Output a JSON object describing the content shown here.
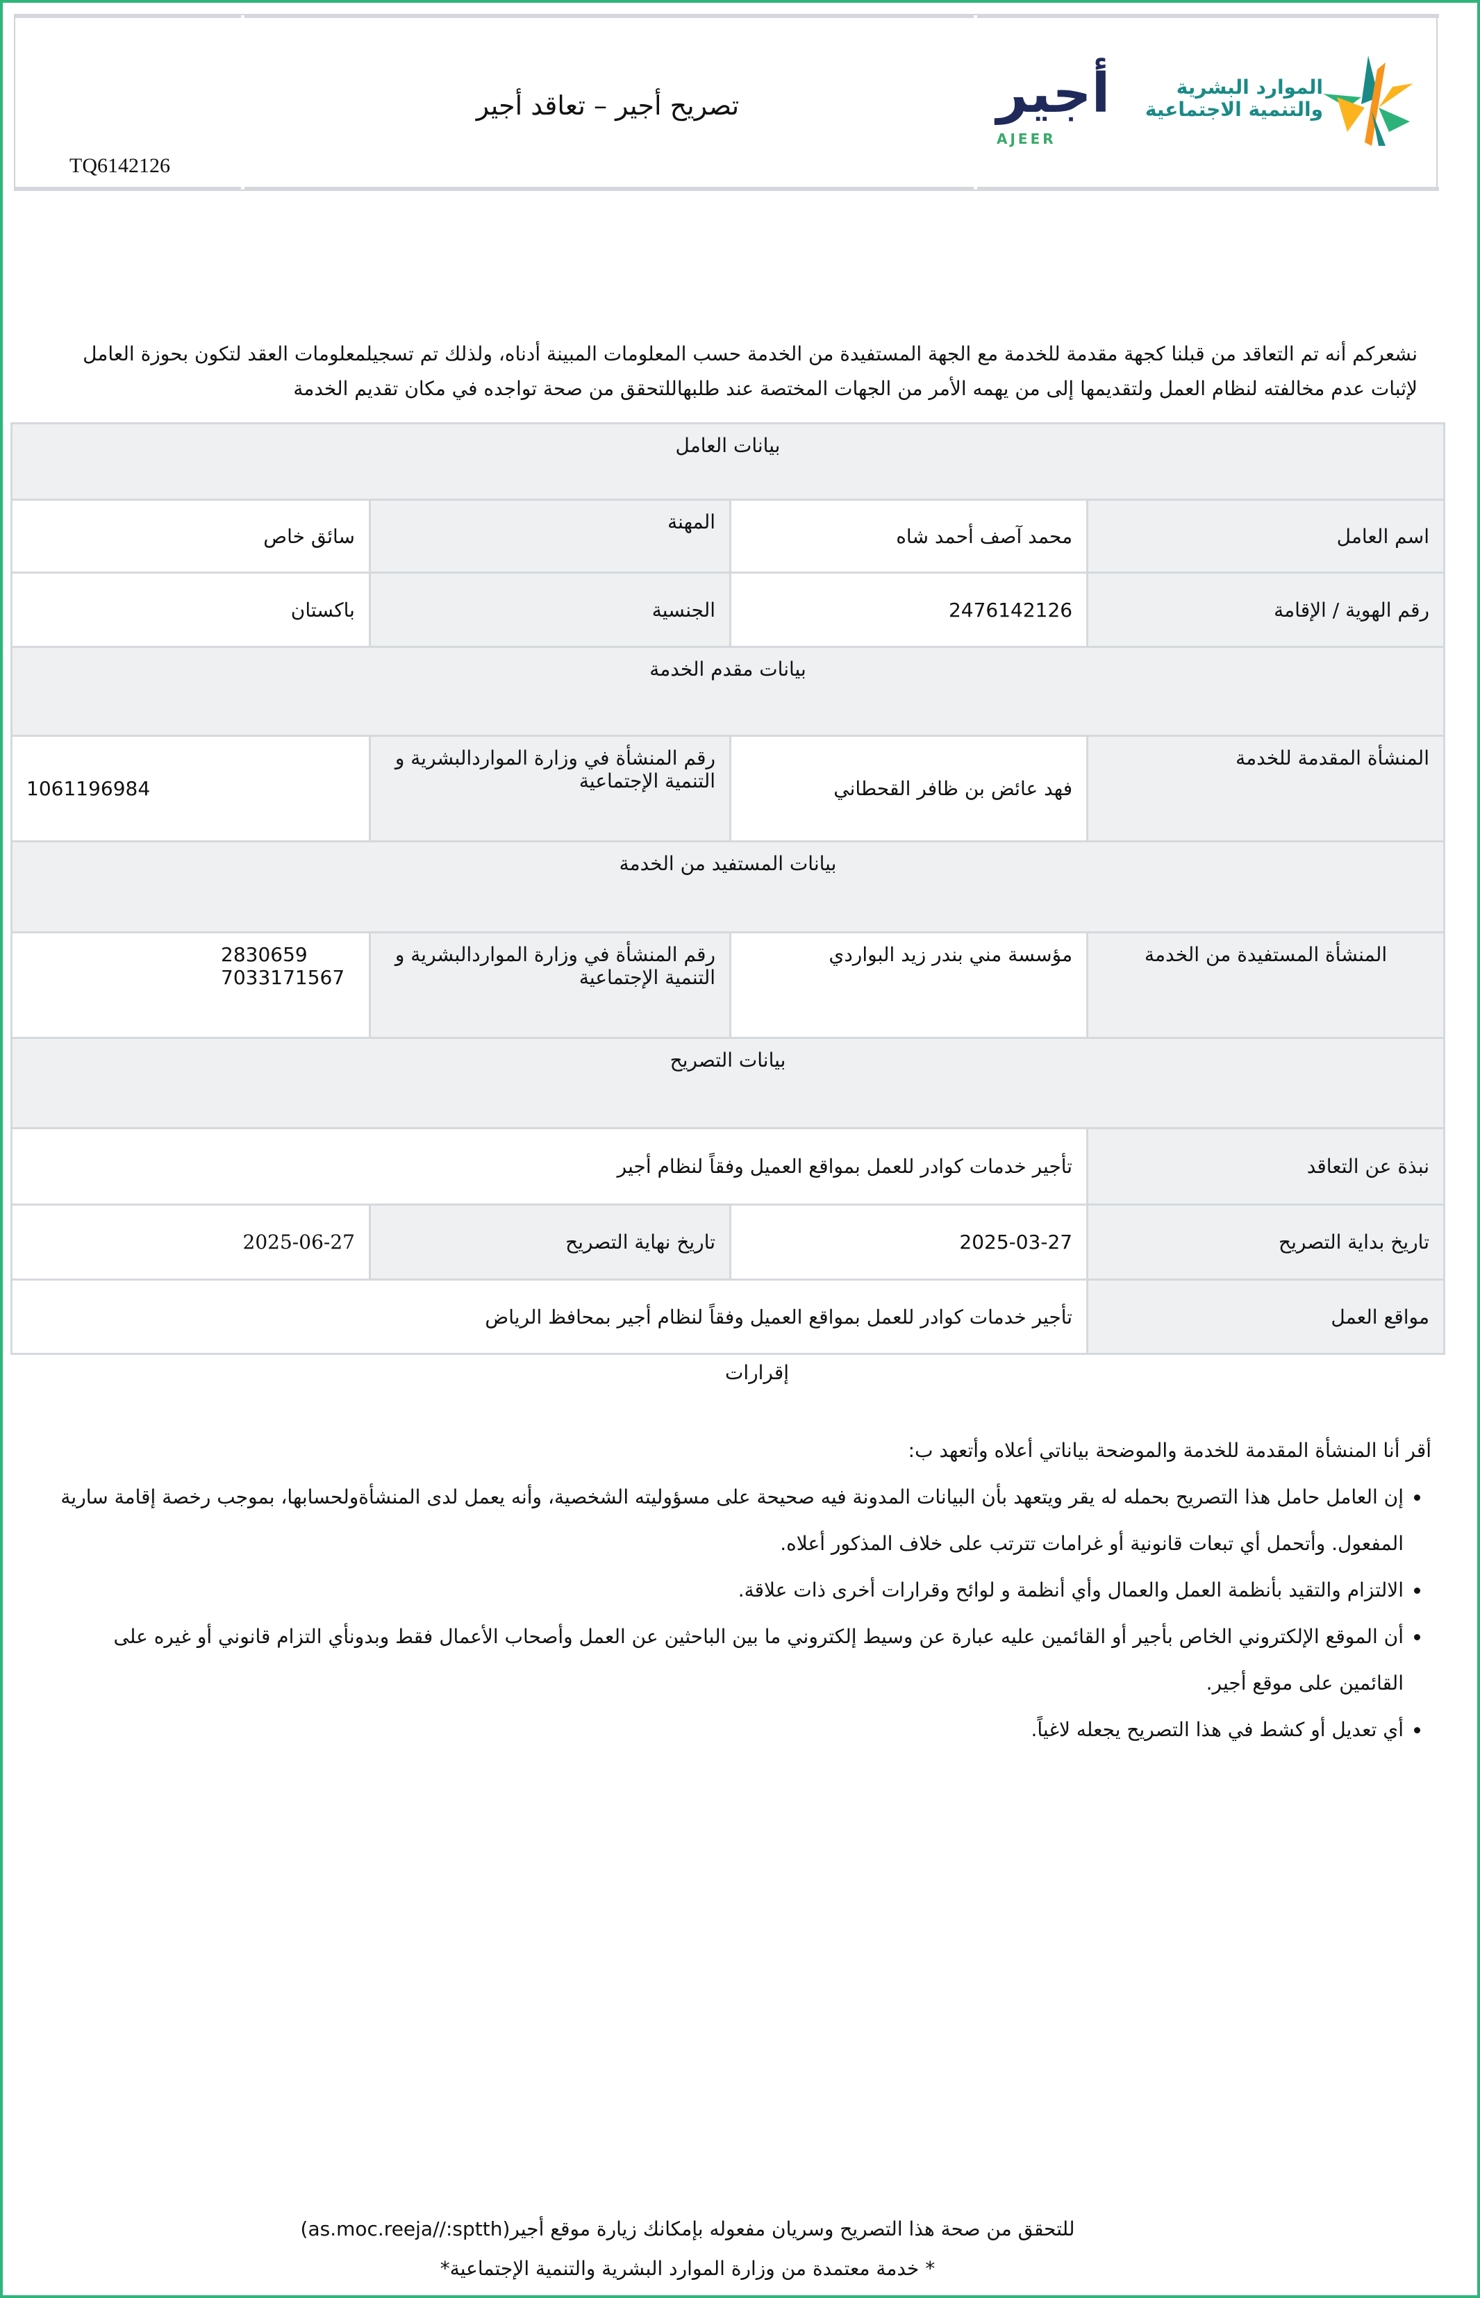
{
  "header": {
    "title": "تصريح أجير –  تعاقد أجير",
    "reference": "TQ6142126",
    "ajeer_logo_text": "أجير",
    "ajeer_logo_latin": "AJEER",
    "ministry_logo_line1": "الموارد البشرية",
    "ministry_logo_line2": "والتنمية الاجتماعية",
    "colors": {
      "border_green": "#2fb57a",
      "ajeer_navy": "#1f2a5a",
      "ajeer_green": "#3aa86b",
      "ministry_teal": "#1a8a86"
    }
  },
  "intro": "نشعركم أنه تم التعاقد من قبلنا كجهة مقدمة للخدمة مع الجهة المستفيدة من الخدمة حسب المعلومات المبينة أدناه، ولذلك تم تسجيلمعلومات العقد لتكون بحوزة العامل لإثبات عدم مخالفته لنظام العمل ولتقديمها إلى من يهمه الأمر من الجهات المختصة عند طلبهاللتحقق من صحة تواجده في مكان تقديم الخدمة",
  "worker": {
    "section": "بيانات العامل",
    "name_label": "اسم العامل",
    "name": "محمد آصف  أحمد شاه",
    "profession_label": "المهنة",
    "profession": "سائق خاص",
    "id_label": "رقم الهوية / الإقامة",
    "id": "2476142126",
    "nationality_label": "الجنسية",
    "nationality": "باكستان"
  },
  "provider": {
    "section": "بيانات مقدم الخدمة",
    "entity_label": "المنشأة المقدمة للخدمة",
    "entity": "فهد عائض بن ظافر القحطاني",
    "number_label": "رقم المنشأة في وزارة المواردالبشرية و التنمية الإجتماعية",
    "number": "1061196984"
  },
  "beneficiary": {
    "section": "بيانات المستفيد من الخدمة",
    "entity_label": "المنشأة المستفيدة من الخدمة",
    "entity": "مؤسسة مني بندر زيد البواردي",
    "number_label": "رقم المنشأة في وزارة المواردالبشرية و التنمية الإجتماعية",
    "number": "2830659 7033171567"
  },
  "permit": {
    "section": "بيانات التصريح",
    "summary_label": "نبذة عن التعاقد",
    "summary": "تأجير خدمات كوادر للعمل بمواقع العميل وفقاً لنظام أجير",
    "start_label": "تاريخ بداية التصريح",
    "start": "2025-03-27",
    "end_label": "تاريخ نهاية التصريح",
    "end": "2025-06-27",
    "locations_label": "مواقع العمل",
    "locations": "تأجير خدمات كوادر للعمل بمواقع العميل وفقاً لنظام أجير بمحافظ الرياض"
  },
  "declarations": {
    "title": "إقرارات",
    "intro": "أقر أنا المنشأة المقدمة للخدمة والموضحة بياناتي أعلاه وأتعهد ب:",
    "items": [
      "إن العامل حامل هذا التصريح بحمله له يقر ويتعهد بأن البيانات المدونة فيه صحيحة على مسؤوليته الشخصية، وأنه يعمل لدى المنشأةولحسابها، بموجب رخصة إقامة سارية المفعول. وأتحمل أي تبعات قانونية أو غرامات تترتب على خلاف المذكور أعلاه.",
      "الالتزام والتقيد بأنظمة العمل والعمال وأي أنظمة و لوائح وقرارات أخرى ذات علاقة.",
      "أن الموقع الإلكتروني الخاص بأجير أو القائمين عليه عبارة عن وسيط إلكتروني ما بين الباحثين عن العمل وأصحاب الأعمال فقط وبدونأي التزام قانوني أو غيره على القائمين على موقع أجير.",
      "أي تعديل أو كشط في هذا التصريح يجعله لاغياً."
    ]
  },
  "footer": {
    "verify": "للتحقق من صحة هذا التصريح وسريان مفعوله بإمكانك زيارة موقع أجير(as.moc.reeja//:sptth)",
    "approved": "* خدمة معتمدة من وزارة الموارد البشرية والتنمية الإجتماعية*"
  }
}
